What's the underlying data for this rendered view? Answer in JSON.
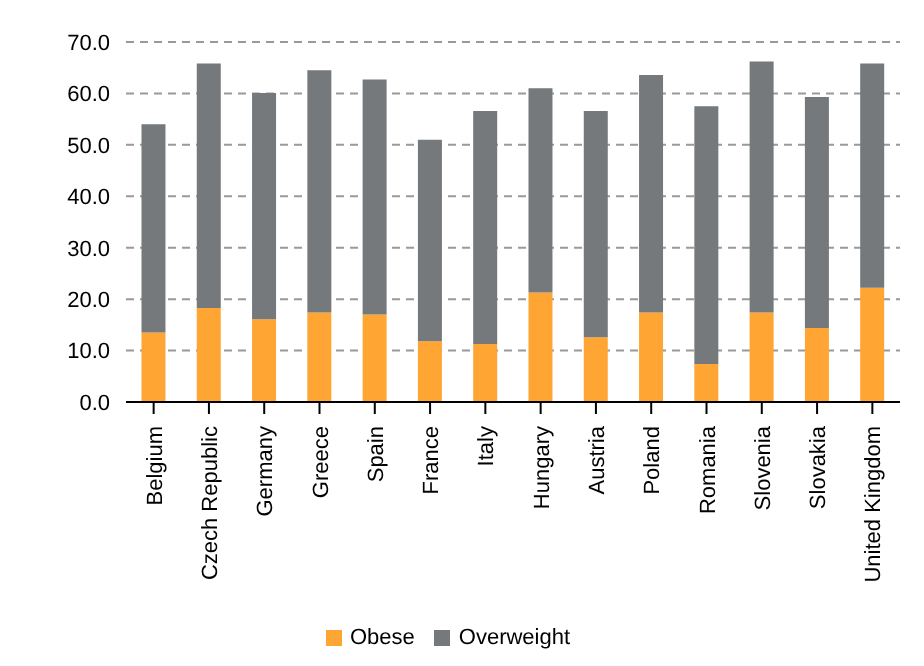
{
  "chart_data": {
    "type": "bar",
    "stacked": true,
    "categories": [
      "Belgium",
      "Czech Republic",
      "Germany",
      "Greece",
      "Spain",
      "France",
      "Italy",
      "Hungary",
      "Austria",
      "Poland",
      "Romania",
      "Slovenia",
      "Slovakia",
      "United Kingdom"
    ],
    "series": [
      {
        "name": "Obese",
        "color": "#ffa533",
        "values": [
          13.5,
          18.3,
          16.1,
          17.4,
          17.0,
          11.8,
          11.3,
          21.3,
          12.6,
          17.4,
          7.4,
          17.4,
          14.4,
          22.2
        ]
      },
      {
        "name": "Overweight",
        "color": "#75797b",
        "values": [
          40.5,
          47.5,
          44.0,
          47.1,
          45.7,
          39.2,
          45.3,
          39.7,
          44.0,
          46.2,
          50.1,
          48.8,
          44.9,
          43.6
        ]
      }
    ],
    "ylim": [
      0,
      70
    ],
    "yticks": [
      {
        "value": 0,
        "label": "0.0"
      },
      {
        "value": 10,
        "label": "10.0"
      },
      {
        "value": 20,
        "label": "20.0"
      },
      {
        "value": 30,
        "label": "30.0"
      },
      {
        "value": 40,
        "label": "40.0"
      },
      {
        "value": 50,
        "label": "50.0"
      },
      {
        "value": 60,
        "label": "60.0"
      },
      {
        "value": 70,
        "label": "70.0"
      }
    ],
    "grid": "y",
    "legend": "bottom"
  }
}
